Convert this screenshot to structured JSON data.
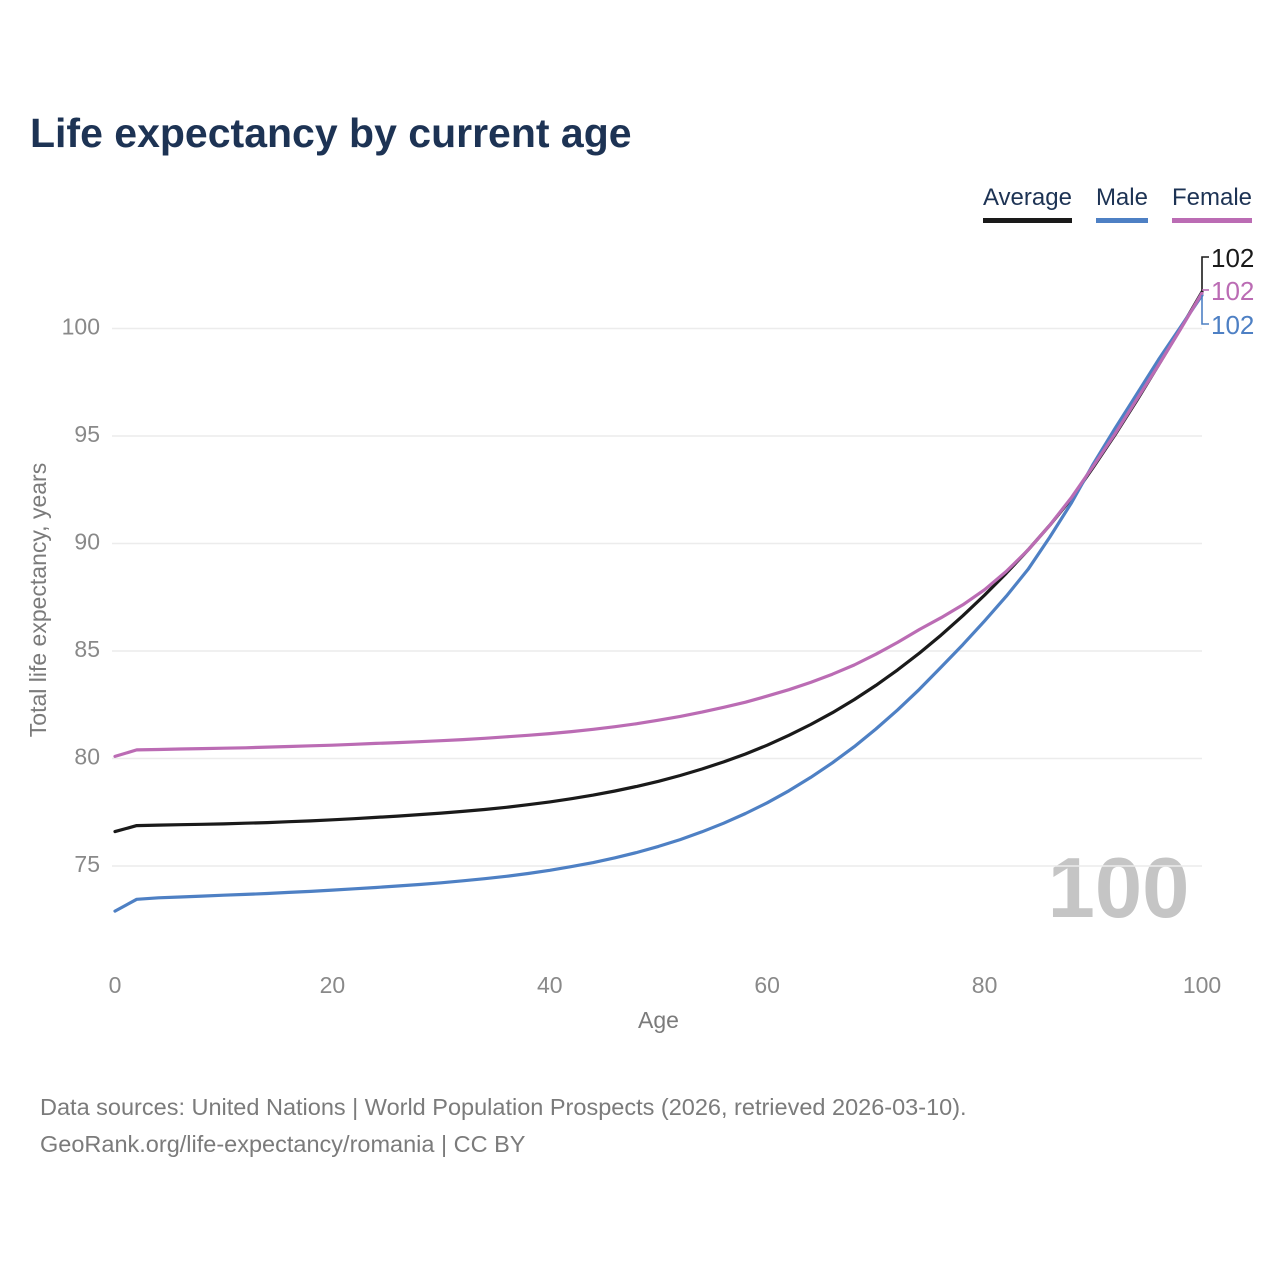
{
  "header": {
    "title": "Life expectancy by current age"
  },
  "colors": {
    "title_text": "#1d3354",
    "legend_text": "#1d3354",
    "average_line": "#1a1a1a",
    "male_line": "#4e80c4",
    "female_line": "#bb6cb4",
    "gridline": "#ececec",
    "tick_text": "#898989",
    "axis_title_text": "#7b7b7b",
    "watermark_text": "#c5c5c5",
    "footer_text": "#7b7b7b"
  },
  "legend": {
    "items": [
      {
        "label": "Average",
        "color": "#1a1a1a"
      },
      {
        "label": "Male",
        "color": "#4e80c4"
      },
      {
        "label": "Female",
        "color": "#bb6cb4"
      }
    ]
  },
  "watermark": {
    "text": "100"
  },
  "footer": {
    "line1": "Data sources: United Nations | World Population Prospects (2026, retrieved 2026-03-10).",
    "line2": "GeoRank.org/life-expectancy/romania | CC BY"
  },
  "chart_data": {
    "type": "line",
    "title": "Life expectancy by current age",
    "xlabel": "Age",
    "ylabel": "Total life expectancy, years",
    "x_start": 0,
    "x_step": 2,
    "xlim": [
      0,
      100
    ],
    "ylim": [
      72,
      103
    ],
    "xticks": [
      0,
      20,
      40,
      60,
      80,
      100
    ],
    "yticks": [
      75,
      80,
      85,
      90,
      95,
      100
    ],
    "grid": "horizontal",
    "legend_position": "top-right",
    "series": [
      {
        "name": "Average",
        "color": "#1a1a1a",
        "end_label": "102",
        "values": [
          76.6,
          76.88,
          76.9,
          76.92,
          76.94,
          76.96,
          76.99,
          77.02,
          77.06,
          77.1,
          77.15,
          77.2,
          77.26,
          77.32,
          77.39,
          77.46,
          77.54,
          77.63,
          77.73,
          77.85,
          77.98,
          78.13,
          78.3,
          78.49,
          78.7,
          78.94,
          79.21,
          79.51,
          79.84,
          80.21,
          80.62,
          81.08,
          81.58,
          82.13,
          82.74,
          83.4,
          84.12,
          84.9,
          85.74,
          86.64,
          87.6,
          88.62,
          89.7,
          90.85,
          92.1,
          93.55,
          95.05,
          96.65,
          98.3,
          99.97,
          101.7
        ]
      },
      {
        "name": "Male",
        "color": "#4e80c4",
        "end_label": "102",
        "values": [
          72.9,
          73.45,
          73.52,
          73.56,
          73.6,
          73.64,
          73.68,
          73.72,
          73.77,
          73.82,
          73.88,
          73.94,
          74.0,
          74.07,
          74.14,
          74.22,
          74.31,
          74.41,
          74.52,
          74.65,
          74.8,
          74.97,
          75.16,
          75.38,
          75.63,
          75.91,
          76.23,
          76.59,
          76.99,
          77.44,
          77.94,
          78.5,
          79.12,
          79.8,
          80.55,
          81.37,
          82.26,
          83.22,
          84.25,
          85.3,
          86.4,
          87.55,
          88.8,
          90.3,
          91.9,
          93.7,
          95.35,
          96.95,
          98.55,
          100.05,
          101.55
        ]
      },
      {
        "name": "Female",
        "color": "#bb6cb4",
        "end_label": "102",
        "values": [
          80.1,
          80.4,
          80.42,
          80.44,
          80.46,
          80.48,
          80.5,
          80.53,
          80.56,
          80.59,
          80.62,
          80.66,
          80.7,
          80.74,
          80.78,
          80.83,
          80.88,
          80.94,
          81.01,
          81.08,
          81.16,
          81.25,
          81.36,
          81.48,
          81.62,
          81.78,
          81.96,
          82.16,
          82.38,
          82.62,
          82.9,
          83.2,
          83.54,
          83.92,
          84.35,
          84.85,
          85.4,
          86.0,
          86.55,
          87.15,
          87.85,
          88.7,
          89.7,
          90.85,
          92.15,
          93.6,
          95.1,
          96.7,
          98.3,
          99.95,
          101.65
        ]
      }
    ]
  }
}
